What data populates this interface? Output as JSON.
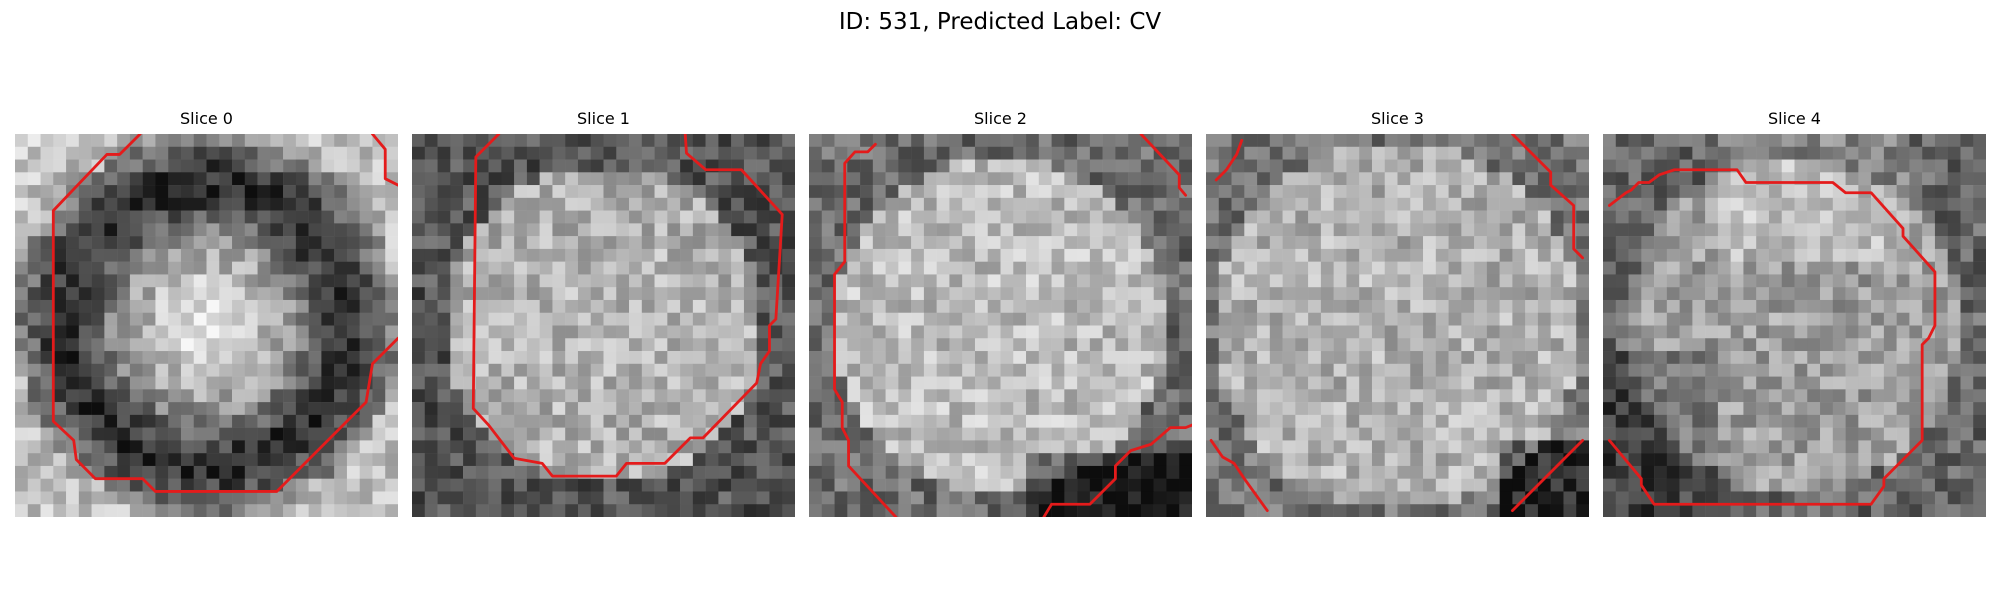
{
  "figure": {
    "title": "ID: 531, Predicted Label: CV"
  },
  "slices": [
    {
      "title": "Slice 0"
    },
    {
      "title": "Slice 1"
    },
    {
      "title": "Slice 2"
    },
    {
      "title": "Slice 3"
    },
    {
      "title": "Slice 4"
    }
  ],
  "colors": {
    "contour": "#e41b1b",
    "colormap": "grayscale"
  }
}
